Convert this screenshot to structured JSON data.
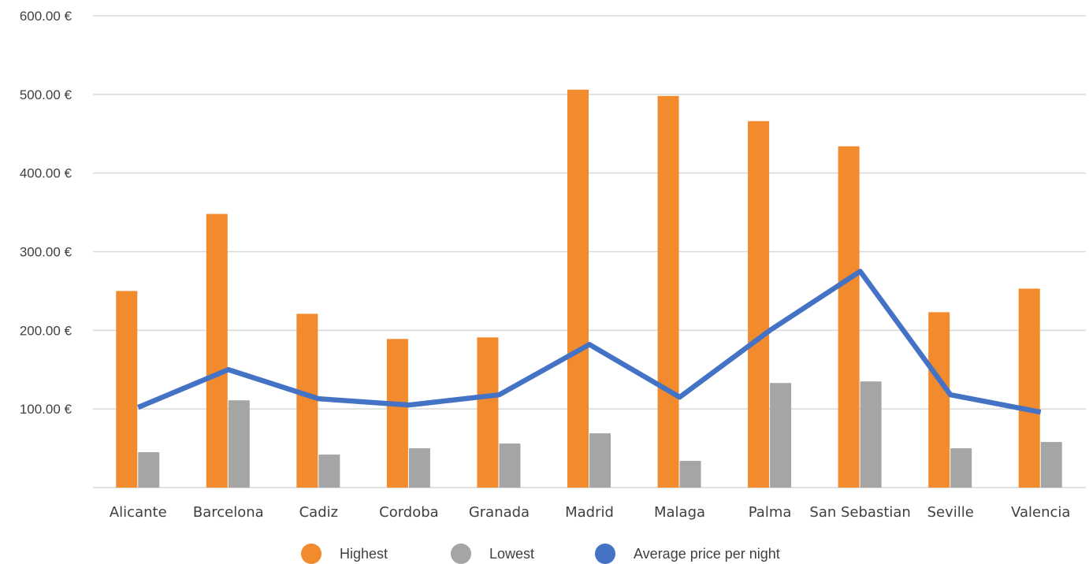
{
  "chart_data": {
    "type": "bar",
    "categories": [
      "Alicante",
      "Barcelona",
      "Cadiz",
      "Cordoba",
      "Granada",
      "Madrid",
      "Malaga",
      "Palma",
      "San Sebastian",
      "Seville",
      "Valencia"
    ],
    "series": [
      {
        "name": "Highest",
        "type": "bar",
        "color": "#F28A2E",
        "values": [
          250,
          348,
          221,
          189,
          191,
          506,
          498,
          466,
          434,
          223,
          253
        ]
      },
      {
        "name": "Lowest",
        "type": "bar",
        "color": "#A5A5A5",
        "values": [
          45,
          111,
          42,
          50,
          56,
          69,
          34,
          133,
          135,
          50,
          58
        ]
      },
      {
        "name": "Average price per night",
        "type": "line",
        "color": "#4472C4",
        "values": [
          102,
          150,
          113,
          105,
          118,
          182,
          115,
          200,
          275,
          118,
          96
        ]
      }
    ],
    "ylim": [
      0,
      600
    ],
    "yticks": [
      100,
      200,
      300,
      400,
      500,
      600
    ],
    "ytick_labels": [
      "100.00 €",
      "200.00 €",
      "300.00 €",
      "400.00 €",
      "500.00 €",
      "600.00 €"
    ],
    "grid": true,
    "legend_position": "bottom",
    "title": "",
    "xlabel": "",
    "ylabel": ""
  }
}
